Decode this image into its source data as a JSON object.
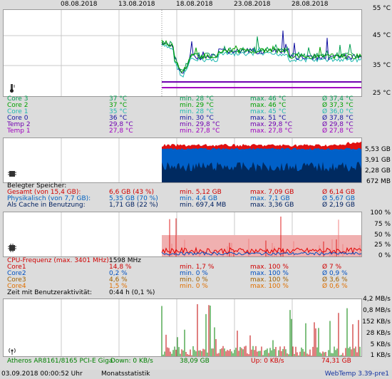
{
  "top_dates": [
    "08.08.2018",
    "13.08.2018",
    "18.08.2018",
    "23.08.2018",
    "28.08.2018"
  ],
  "temp": {
    "axis": [
      "55 °C",
      "45 °C",
      "35 °C",
      "25 °C"
    ],
    "rows": [
      {
        "name": "Core 3",
        "cur": "37 °C",
        "min": "min. 28 °C",
        "max": "max. 46 °C",
        "avg": "Ø 37,4 °C",
        "color": "#009e4f"
      },
      {
        "name": "Core 2",
        "cur": "37 °C",
        "min": "min. 29 °C",
        "max": "max. 46 °C",
        "avg": "Ø 37,3 °C",
        "color": "#00a000"
      },
      {
        "name": "Core 1",
        "cur": "35 °C",
        "min": "min. 28 °C",
        "max": "max. 45 °C",
        "avg": "Ø 36,0 °C",
        "color": "#20b8b0"
      },
      {
        "name": "Core 0",
        "cur": "36 °C",
        "min": "min. 30 °C",
        "max": "max. 51 °C",
        "avg": "Ø 37,8 °C",
        "color": "#1010a0"
      },
      {
        "name": "Temp 2",
        "cur": "29,8 °C",
        "min": "min. 29,8 °C",
        "max": "max. 29,8 °C",
        "avg": "Ø 29,8 °C",
        "color": "#7000b0"
      },
      {
        "name": "Temp 1",
        "cur": "27,8 °C",
        "min": "min. 27,8 °C",
        "max": "max. 27,8 °C",
        "avg": "Ø 27,8 °C",
        "color": "#a000c0"
      }
    ]
  },
  "mem": {
    "axis": [
      "5,53 GB",
      "3,91 GB",
      "2,28 GB",
      "672 MB"
    ],
    "header": "Belegter Speicher:",
    "rows": [
      {
        "name": "Gesamt (von 15,4 GB):",
        "cur": "6,6 GB (43 %)",
        "min": "min. 5,12 GB",
        "max": "max. 7,09 GB",
        "avg": "Ø 6,14 GB",
        "color": "#d00000"
      },
      {
        "name": "Physikalisch (von 7,7 GB):",
        "cur": "5,35 GB (70 %)",
        "min": "min. 4,4 GB",
        "max": "max. 7,1 GB",
        "avg": "Ø 5,67 GB",
        "color": "#0060c0"
      },
      {
        "name": "Als Cache in Benutzung:",
        "cur": "1,71 GB (22 %)",
        "min": "min. 697,4 MB",
        "max": "max. 3,36 GB",
        "avg": "Ø 2,19 GB",
        "color": "#002060"
      }
    ]
  },
  "cpu": {
    "axis": [
      "100 %",
      "75 %",
      "50 %",
      "25 %",
      "0 %"
    ],
    "freq_label": "CPU-Frequenz (max. 3401 MHz):",
    "freq_value": "1598 MHz",
    "rows": [
      {
        "name": "Core1",
        "cur": "14,8 %",
        "min": "min. 1,7 %",
        "max": "max. 100 %",
        "avg": "Ø 7 %",
        "color": "#d00000"
      },
      {
        "name": "Core2",
        "cur": "0,2 %",
        "min": "min. 0 %",
        "max": "max. 100 %",
        "avg": "Ø 0,9 %",
        "color": "#0050c0"
      },
      {
        "name": "Core3",
        "cur": "4,6 %",
        "min": "min. 0 %",
        "max": "max. 100 %",
        "avg": "Ø 3,6 %",
        "color": "#a06000"
      },
      {
        "name": "Core4",
        "cur": "1,5 %",
        "min": "min. 0 %",
        "max": "max. 100 %",
        "avg": "Ø 0,6 %",
        "color": "#e07000"
      }
    ],
    "activity_label": "Zeit mit Benutzeraktivität:",
    "activity_value": "0:44 h (0,1 %)"
  },
  "net": {
    "axis": [
      "4,2 MB/s",
      "0,8 MB/s",
      "152 KB/s",
      "28 KB/s",
      "5 KB/s",
      "1 KB/s"
    ],
    "adapter": "Atheros AR8161/8165 PCI-E Giga",
    "down": "Down: 0 KB/s",
    "down_total": "38,09 GB",
    "up": "Up: 0 KB/s",
    "up_total": "74,31 GB"
  },
  "status": {
    "datetime": "03.09.2018 00:00:52 Uhr",
    "section": "Monatsstatistik",
    "version": "WebTemp 3.39-pre1"
  }
}
